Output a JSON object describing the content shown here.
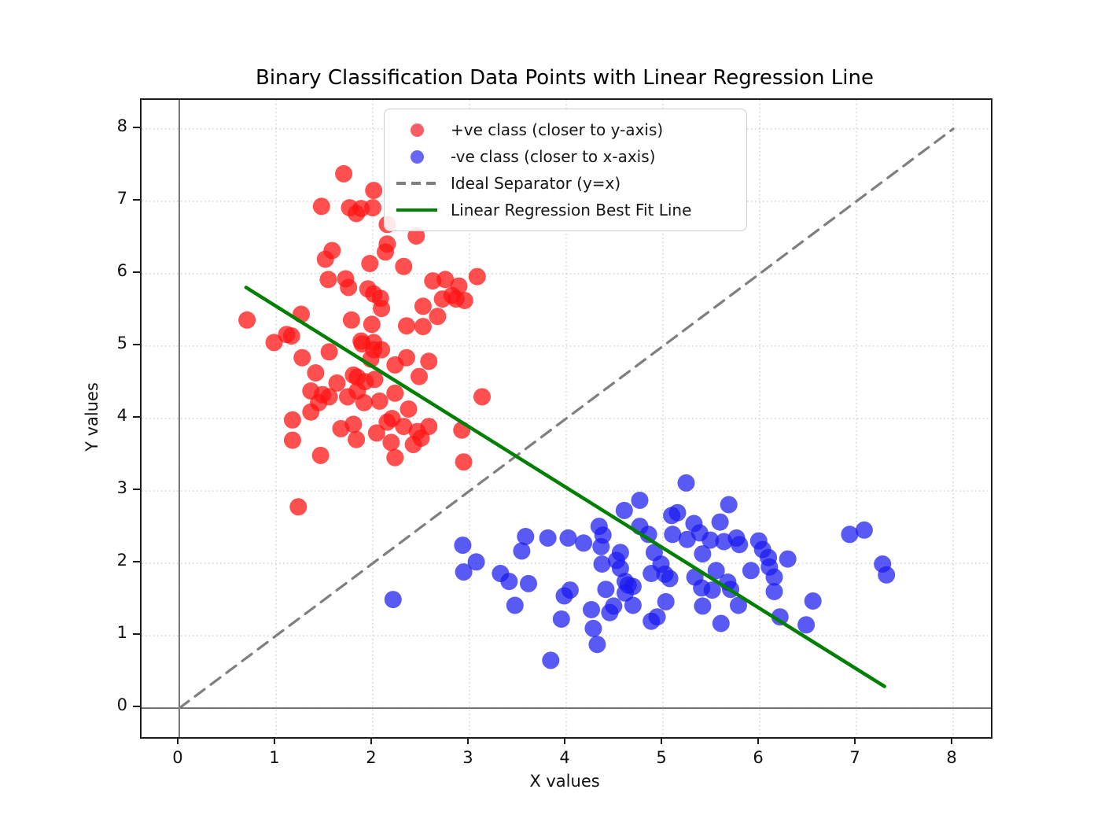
{
  "title": "Binary Classification Data Points with Linear Regression Line",
  "axes": {
    "xlabel": "X values",
    "ylabel": "Y values",
    "xtick_labels": [
      "0",
      "1",
      "2",
      "3",
      "4",
      "5",
      "6",
      "7",
      "8"
    ],
    "ytick_labels": [
      "0",
      "1",
      "2",
      "3",
      "4",
      "5",
      "6",
      "7",
      "8"
    ]
  },
  "legend": {
    "entries": [
      {
        "label": "+ve class (closer to y-axis)",
        "marker": "dot",
        "color": "#f83b44"
      },
      {
        "label": "-ve class (closer to x-axis)",
        "marker": "dot",
        "color": "#4545f0"
      },
      {
        "label": "Ideal Separator (y=x)",
        "marker": "dashed-line",
        "color": "#7f7f7f"
      },
      {
        "label": "Linear Regression Best Fit Line",
        "marker": "solid-line",
        "color": "#008000"
      }
    ]
  },
  "chart_data": {
    "type": "scatter",
    "title": "Binary Classification Data Points with Linear Regression Line",
    "xlabel": "X values",
    "ylabel": "Y values",
    "xlim": [
      -0.39,
      8.39
    ],
    "ylim": [
      -0.4,
      8.4
    ],
    "xticks": [
      0,
      1,
      2,
      3,
      4,
      5,
      6,
      7,
      8
    ],
    "yticks": [
      0,
      1,
      2,
      3,
      4,
      5,
      6,
      7,
      8
    ],
    "grid": true,
    "grid_color": "#c6c6c6",
    "zero_lines": {
      "color": "#4a4a4a",
      "width": 1.5
    },
    "marker_radius_px": 11,
    "legend_position": "upper center-left",
    "series": [
      {
        "name": "+ve class (closer to y-axis)",
        "color": "#ff1414",
        "opacity": 0.75,
        "points": [
          [
            0.7,
            5.36
          ],
          [
            0.98,
            5.05
          ],
          [
            1.11,
            5.16
          ],
          [
            1.16,
            5.14
          ],
          [
            1.17,
            3.98
          ],
          [
            1.17,
            3.7
          ],
          [
            1.23,
            2.78
          ],
          [
            1.26,
            5.44
          ],
          [
            1.27,
            4.84
          ],
          [
            1.36,
            4.38
          ],
          [
            1.36,
            4.09
          ],
          [
            1.41,
            4.63
          ],
          [
            1.44,
            4.22
          ],
          [
            1.46,
            3.49
          ],
          [
            1.47,
            6.93
          ],
          [
            1.48,
            4.33
          ],
          [
            1.51,
            6.2
          ],
          [
            1.54,
            5.92
          ],
          [
            1.55,
            4.92
          ],
          [
            1.55,
            4.3
          ],
          [
            1.58,
            6.32
          ],
          [
            1.63,
            4.49
          ],
          [
            1.67,
            3.86
          ],
          [
            1.7,
            7.38
          ],
          [
            1.72,
            5.93
          ],
          [
            1.74,
            4.3
          ],
          [
            1.75,
            5.81
          ],
          [
            1.76,
            6.91
          ],
          [
            1.78,
            5.36
          ],
          [
            1.8,
            4.6
          ],
          [
            1.8,
            3.92
          ],
          [
            1.83,
            6.83
          ],
          [
            1.83,
            3.71
          ],
          [
            1.84,
            4.57
          ],
          [
            1.84,
            4.38
          ],
          [
            1.88,
            6.9
          ],
          [
            1.88,
            5.07
          ],
          [
            1.89,
            5.03
          ],
          [
            1.91,
            4.22
          ],
          [
            1.92,
            4.51
          ],
          [
            1.95,
            5.79
          ],
          [
            1.97,
            6.14
          ],
          [
            1.98,
            4.82
          ],
          [
            1.99,
            5.3
          ],
          [
            2.0,
            6.91
          ],
          [
            2.01,
            7.15
          ],
          [
            2.01,
            5.72
          ],
          [
            2.01,
            5.05
          ],
          [
            2.01,
            4.95
          ],
          [
            2.02,
            4.54
          ],
          [
            2.04,
            3.8
          ],
          [
            2.07,
            4.24
          ],
          [
            2.08,
            5.66
          ],
          [
            2.09,
            5.52
          ],
          [
            2.09,
            4.95
          ],
          [
            2.13,
            6.3
          ],
          [
            2.15,
            6.68
          ],
          [
            2.15,
            6.41
          ],
          [
            2.15,
            3.95
          ],
          [
            2.19,
            3.67
          ],
          [
            2.2,
            4.0
          ],
          [
            2.23,
            4.74
          ],
          [
            2.23,
            4.35
          ],
          [
            2.23,
            3.46
          ],
          [
            2.32,
            6.1
          ],
          [
            2.32,
            3.89
          ],
          [
            2.35,
            5.28
          ],
          [
            2.35,
            4.84
          ],
          [
            2.37,
            4.13
          ],
          [
            2.42,
            3.64
          ],
          [
            2.45,
            6.52
          ],
          [
            2.46,
            3.82
          ],
          [
            2.48,
            4.58
          ],
          [
            2.5,
            3.73
          ],
          [
            2.52,
            5.55
          ],
          [
            2.52,
            5.27
          ],
          [
            2.58,
            4.79
          ],
          [
            2.58,
            3.89
          ],
          [
            2.62,
            5.9
          ],
          [
            2.67,
            5.41
          ],
          [
            2.72,
            5.65
          ],
          [
            2.75,
            5.92
          ],
          [
            2.82,
            5.7
          ],
          [
            2.86,
            5.65
          ],
          [
            2.89,
            5.83
          ],
          [
            2.92,
            3.84
          ],
          [
            2.94,
            3.4
          ],
          [
            2.95,
            5.63
          ],
          [
            3.08,
            5.96
          ],
          [
            3.13,
            4.3
          ]
        ]
      },
      {
        "name": "-ve class (closer to x-axis)",
        "color": "#1919f0",
        "opacity": 0.72,
        "points": [
          [
            2.21,
            1.5
          ],
          [
            2.93,
            2.25
          ],
          [
            2.94,
            1.88
          ],
          [
            3.07,
            2.02
          ],
          [
            3.32,
            1.86
          ],
          [
            3.41,
            1.75
          ],
          [
            3.47,
            1.42
          ],
          [
            3.54,
            2.17
          ],
          [
            3.58,
            2.37
          ],
          [
            3.61,
            1.72
          ],
          [
            3.81,
            2.35
          ],
          [
            3.84,
            0.66
          ],
          [
            3.95,
            1.23
          ],
          [
            3.98,
            1.55
          ],
          [
            4.02,
            2.35
          ],
          [
            4.04,
            1.63
          ],
          [
            4.18,
            2.28
          ],
          [
            4.26,
            1.36
          ],
          [
            4.28,
            1.1
          ],
          [
            4.32,
            0.88
          ],
          [
            4.34,
            2.51
          ],
          [
            4.36,
            2.23
          ],
          [
            4.37,
            1.99
          ],
          [
            4.38,
            2.39
          ],
          [
            4.41,
            1.64
          ],
          [
            4.45,
            1.32
          ],
          [
            4.49,
            1.41
          ],
          [
            4.52,
            2.04
          ],
          [
            4.56,
            2.15
          ],
          [
            4.56,
            1.93
          ],
          [
            4.6,
            2.73
          ],
          [
            4.61,
            1.75
          ],
          [
            4.61,
            1.59
          ],
          [
            4.64,
            1.7
          ],
          [
            4.69,
            1.68
          ],
          [
            4.69,
            1.42
          ],
          [
            4.76,
            2.87
          ],
          [
            4.76,
            2.51
          ],
          [
            4.85,
            2.4
          ],
          [
            4.88,
            1.86
          ],
          [
            4.88,
            1.2
          ],
          [
            4.91,
            2.15
          ],
          [
            4.94,
            1.26
          ],
          [
            4.98,
            1.99
          ],
          [
            5.02,
            1.85
          ],
          [
            5.03,
            1.47
          ],
          [
            5.07,
            1.79
          ],
          [
            5.09,
            2.66
          ],
          [
            5.1,
            2.4
          ],
          [
            5.15,
            2.7
          ],
          [
            5.24,
            3.11
          ],
          [
            5.25,
            2.33
          ],
          [
            5.32,
            2.55
          ],
          [
            5.33,
            1.81
          ],
          [
            5.38,
            2.42
          ],
          [
            5.4,
            1.66
          ],
          [
            5.41,
            2.13
          ],
          [
            5.41,
            1.41
          ],
          [
            5.49,
            2.32
          ],
          [
            5.51,
            1.63
          ],
          [
            5.55,
            1.9
          ],
          [
            5.59,
            2.57
          ],
          [
            5.6,
            1.17
          ],
          [
            5.63,
            2.3
          ],
          [
            5.67,
            1.74
          ],
          [
            5.68,
            2.81
          ],
          [
            5.7,
            1.64
          ],
          [
            5.76,
            2.35
          ],
          [
            5.78,
            1.42
          ],
          [
            5.79,
            2.26
          ],
          [
            5.91,
            1.9
          ],
          [
            5.99,
            2.31
          ],
          [
            6.03,
            2.19
          ],
          [
            6.09,
            2.08
          ],
          [
            6.1,
            1.95
          ],
          [
            6.15,
            1.81
          ],
          [
            6.15,
            1.61
          ],
          [
            6.21,
            1.26
          ],
          [
            6.29,
            2.06
          ],
          [
            6.48,
            1.15
          ],
          [
            6.55,
            1.48
          ],
          [
            6.93,
            2.4
          ],
          [
            7.08,
            2.46
          ],
          [
            7.27,
            1.99
          ],
          [
            7.31,
            1.84
          ]
        ]
      }
    ],
    "lines": [
      {
        "name": "Ideal Separator (y=x)",
        "x": [
          0,
          8.0
        ],
        "y": [
          0,
          8.0
        ],
        "color": "#7f7f7f",
        "style": "dashed",
        "width": 3.2
      },
      {
        "name": "Linear Regression Best Fit Line",
        "x": [
          0.69,
          7.29
        ],
        "y": [
          5.81,
          0.3
        ],
        "color": "#008000",
        "style": "solid",
        "width": 4.5
      }
    ]
  }
}
